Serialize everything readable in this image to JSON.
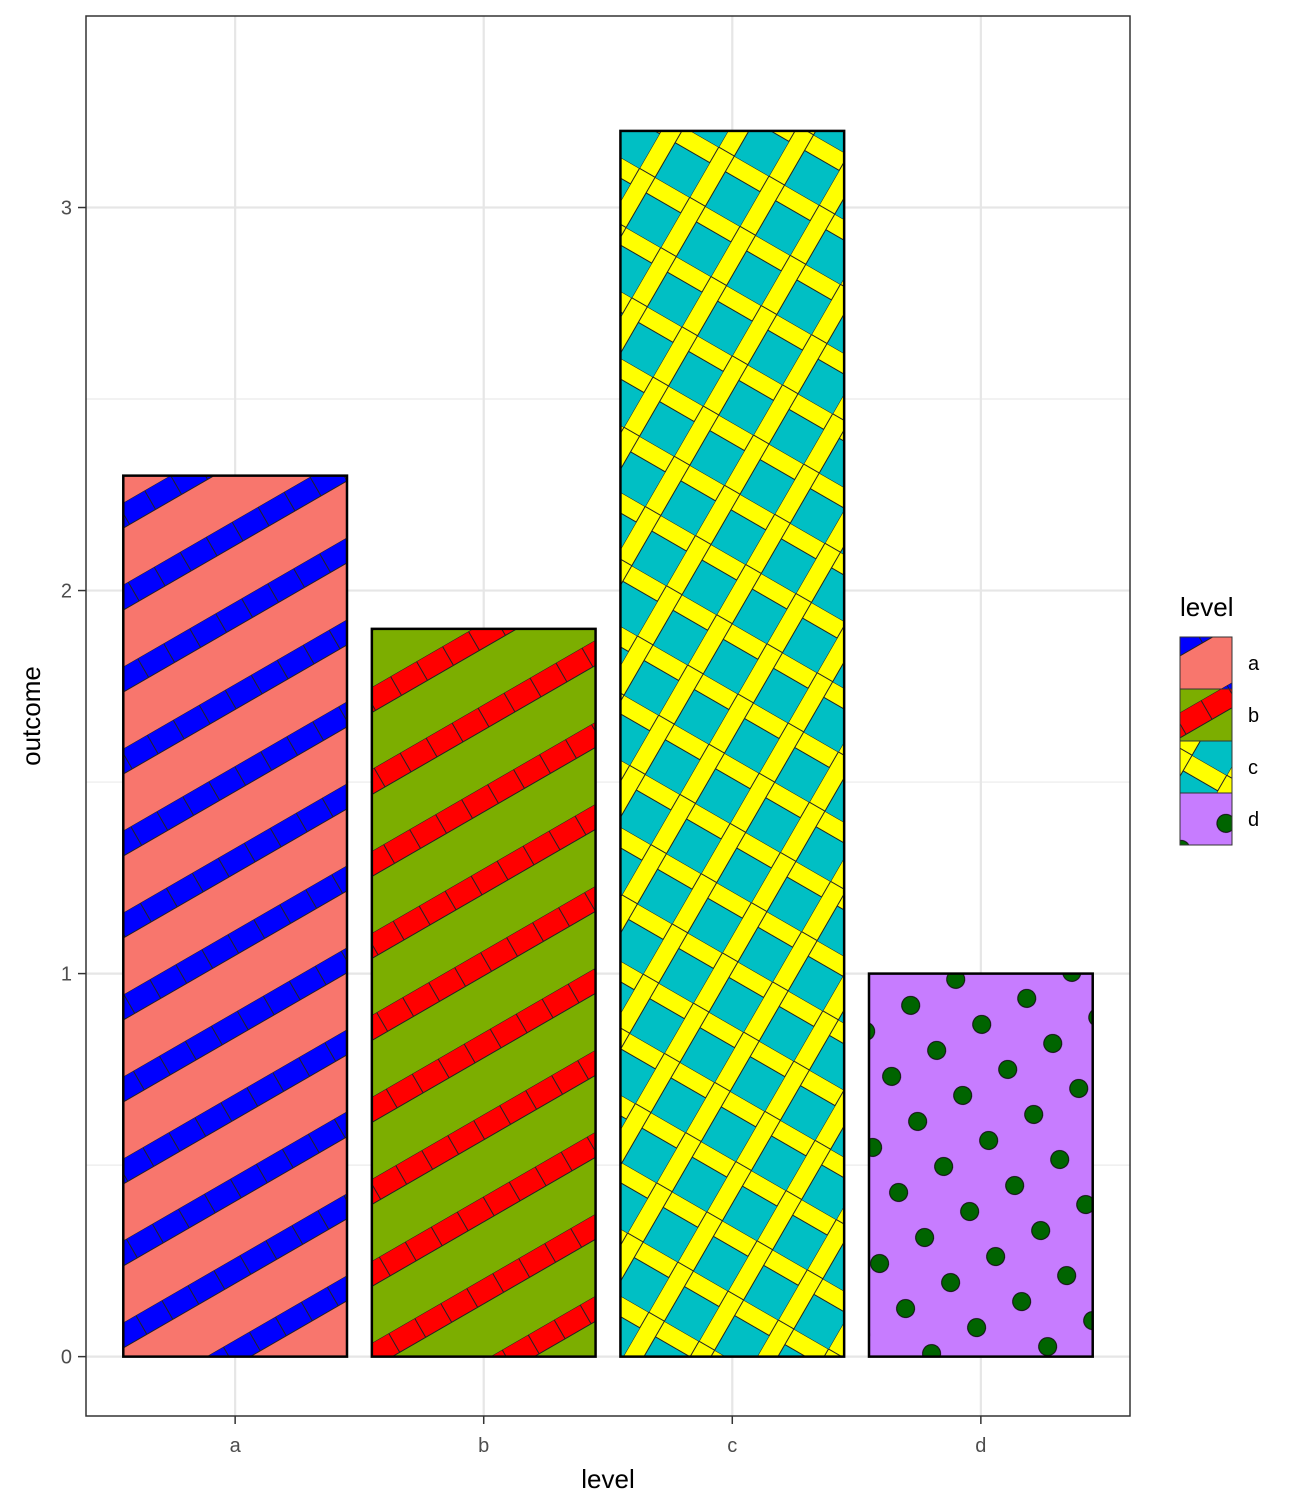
{
  "chart_data": {
    "type": "bar",
    "categories": [
      "a",
      "b",
      "c",
      "d"
    ],
    "values": [
      2.3,
      1.9,
      3.2,
      1.0
    ],
    "xlabel": "level",
    "ylabel": "outcome",
    "ylim": [
      -0.155,
      3.5
    ],
    "yticks": [
      0,
      1,
      2,
      3
    ],
    "grid": true,
    "legend": {
      "title": "level",
      "position": "right",
      "entries": [
        "a",
        "b",
        "c",
        "d"
      ]
    },
    "fills": [
      {
        "category": "a",
        "pattern": "stripe",
        "base": "#F8766D",
        "accent": "#0000FF"
      },
      {
        "category": "b",
        "pattern": "stripe",
        "base": "#7CAE00",
        "accent": "#FF0000"
      },
      {
        "category": "c",
        "pattern": "crosshatch",
        "base": "#00BFC4",
        "accent": "#FFFF00"
      },
      {
        "category": "d",
        "pattern": "circle",
        "base": "#C77CFF",
        "accent": "#006400"
      }
    ]
  }
}
